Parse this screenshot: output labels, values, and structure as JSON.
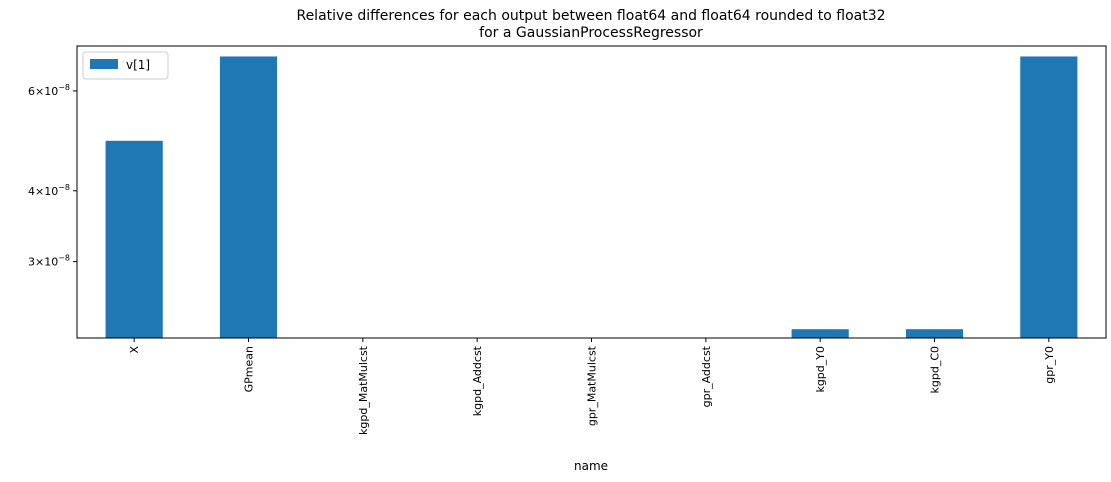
{
  "chart_data": {
    "type": "bar",
    "title": "Relative differences for each output between float64 and float64 rounded to float32",
    "subtitle": "for a GaussianProcessRegressor",
    "xlabel": "name",
    "ylabel": "",
    "yscale": "log",
    "ylim": [
      2.2e-08,
      7.2e-08
    ],
    "yticks": [
      {
        "value": 3e-08,
        "mantissa": "3",
        "exp": "−8"
      },
      {
        "value": 4e-08,
        "mantissa": "4",
        "exp": "−8"
      },
      {
        "value": 6e-08,
        "mantissa": "6",
        "exp": "−8"
      }
    ],
    "categories": [
      "X",
      "GPmean",
      "kgpd_MatMulcst",
      "kgpd_Addcst",
      "gpr_MatMulcst",
      "gpr_Addcst",
      "kgpd_Y0",
      "kgpd_C0",
      "gpr_Y0"
    ],
    "series": [
      {
        "name": "v[1]",
        "color": "#1f77b4",
        "values": [
          4.9e-08,
          6.9e-08,
          null,
          null,
          null,
          null,
          2.28e-08,
          2.28e-08,
          6.9e-08
        ]
      }
    ],
    "legend": "top-left",
    "grid": false
  }
}
